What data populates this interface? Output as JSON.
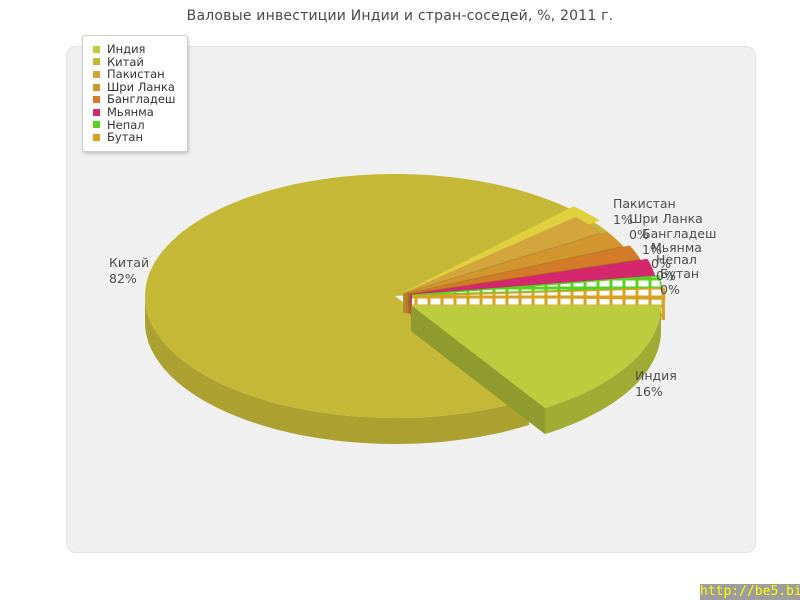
{
  "title": "Валовые инвестиции Индии и стран-соседей, %, 2011 г.",
  "watermark": {
    "text": "http://be5.biz/",
    "color": "#ffff00",
    "background": "#9d9d9d"
  },
  "panel": {
    "background": "#f0f0f0",
    "border": "#e2e2e2"
  },
  "chart_data": {
    "type": "pie",
    "is_3d": true,
    "title": "Валовые инвестиции Индии и стран-соседей, %, 2011 г.",
    "unit": "%",
    "year": "2011",
    "legend_position": "top-left",
    "slices": [
      {
        "label": "Индия",
        "value_pct": 16,
        "pct_text": "16%",
        "color": "#bdcc3c"
      },
      {
        "label": "Китай",
        "value_pct": 82,
        "pct_text": "82%",
        "color": "#c6b837"
      },
      {
        "label": "Пакистан",
        "value_pct": 1,
        "pct_text": "1%",
        "color": "#d3a53c"
      },
      {
        "label": "Шри Ланка",
        "value_pct": 0,
        "pct_text": "0%",
        "color": "#d2962e"
      },
      {
        "label": "Бангладеш",
        "value_pct": 1,
        "pct_text": "1%",
        "color": "#d37b28"
      },
      {
        "label": "Мьянма",
        "value_pct": 0,
        "pct_text": "0%",
        "color": "#d5276d"
      },
      {
        "label": "Непал",
        "value_pct": 0,
        "pct_text": "0%",
        "color": "#58d122",
        "fill_style": "grid"
      },
      {
        "label": "Бутан",
        "value_pct": 0,
        "pct_text": "0%",
        "color": "#d8a122",
        "fill_style": "grid"
      }
    ]
  }
}
